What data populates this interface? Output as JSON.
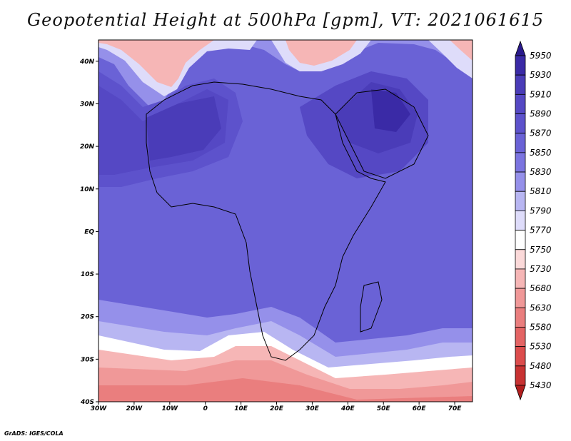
{
  "title": "Geopotential Height at 500hPa [gpm], VT: 2021061615",
  "credit": "GrADS: IGES/COLA",
  "map": {
    "lon_range": [
      -30,
      75
    ],
    "lat_range": [
      -40,
      45
    ],
    "x_tick_labels": [
      "30W",
      "20W",
      "10W",
      "0",
      "10E",
      "20E",
      "30E",
      "40E",
      "50E",
      "60E",
      "70E"
    ],
    "y_tick_labels": [
      "40N",
      "30N",
      "20N",
      "10N",
      "EQ",
      "10S",
      "20S",
      "30S",
      "40S"
    ],
    "field": "geopotential height 500hPa",
    "units": "gpm"
  },
  "colorbar": {
    "levels": [
      "5950",
      "5930",
      "5910",
      "5890",
      "5870",
      "5850",
      "5830",
      "5810",
      "5790",
      "5770",
      "5750",
      "5730",
      "5680",
      "5630",
      "5580",
      "5530",
      "5480",
      "5430"
    ],
    "colors": [
      "#2a1a8c",
      "#3a2aa6",
      "#4a3cb8",
      "#5548c4",
      "#5d52cc",
      "#6a62d6",
      "#7b74e0",
      "#9590ea",
      "#b8b6f2",
      "#dedcfa",
      "#ffffff",
      "#fbd9d9",
      "#f6b6b6",
      "#f09898",
      "#ea7e7e",
      "#e46464",
      "#dc4c4c",
      "#c83232",
      "#b21e1e"
    ]
  }
}
